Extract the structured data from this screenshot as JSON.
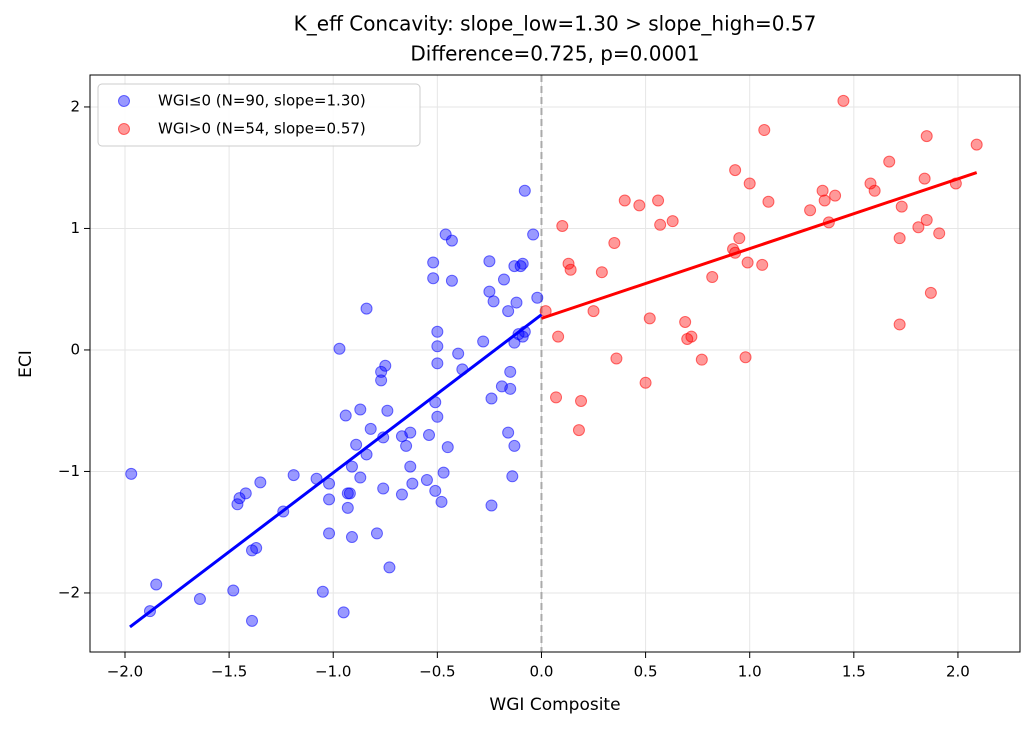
{
  "chart_data": {
    "type": "scatter",
    "title": "K_eff Concavity: slope_low=1.30 > slope_high=0.57",
    "subtitle": "Difference=0.725, p=0.0001",
    "xlabel": "WGI Composite",
    "ylabel": "ECI",
    "xlim": [
      -2.168,
      2.298
    ],
    "ylim": [
      -2.486,
      2.263
    ],
    "xticks": [
      {
        "value": -2,
        "label": "−2.0"
      },
      {
        "value": -1.5,
        "label": "−1.5"
      },
      {
        "value": -1,
        "label": "−1.0"
      },
      {
        "value": -0.5,
        "label": "−0.5"
      },
      {
        "value": 0,
        "label": "0.0"
      },
      0.5,
      {
        "value": 1,
        "label": "1.0"
      },
      1.5,
      {
        "value": 2,
        "label": "2.0"
      }
    ],
    "yticks": [
      {
        "value": -2,
        "label": "−2"
      },
      {
        "value": -1,
        "label": "−1"
      },
      0,
      1,
      2
    ],
    "grid": true,
    "legend": "upper left",
    "vline": {
      "x": 0,
      "color": "#aaaaaa"
    },
    "series": [
      {
        "name": "WGI≤0 (N=90, slope=1.30)",
        "color": "#0000ff",
        "x": [
          -1.97,
          -1.88,
          -1.85,
          -1.64,
          -1.48,
          -1.46,
          -1.45,
          -1.42,
          -1.35,
          -1.39,
          -1.39,
          -1.37,
          -1.24,
          -1.19,
          -1.08,
          -1.05,
          -1.02,
          -1.02,
          -1.02,
          -0.97,
          -0.95,
          -0.94,
          -0.93,
          -0.93,
          -0.92,
          -0.91,
          -0.91,
          -0.89,
          -0.87,
          -0.87,
          -0.84,
          -0.84,
          -0.82,
          -0.79,
          -0.77,
          -0.77,
          -0.76,
          -0.76,
          -0.75,
          -0.74,
          -0.73,
          -0.67,
          -0.67,
          -0.65,
          -0.63,
          -0.63,
          -0.62,
          -0.55,
          -0.54,
          -0.52,
          -0.52,
          -0.51,
          -0.51,
          -0.5,
          -0.5,
          -0.5,
          -0.5,
          -0.48,
          -0.47,
          -0.46,
          -0.45,
          -0.43,
          -0.43,
          -0.4,
          -0.38,
          -0.28,
          -0.25,
          -0.25,
          -0.24,
          -0.24,
          -0.23,
          -0.19,
          -0.18,
          -0.16,
          -0.16,
          -0.15,
          -0.15,
          -0.14,
          -0.13,
          -0.13,
          -0.13,
          -0.12,
          -0.11,
          -0.1,
          -0.09,
          -0.09,
          -0.08,
          -0.08,
          -0.04,
          -0.02
        ],
        "y": [
          -1.02,
          -2.15,
          -1.93,
          -2.05,
          -1.98,
          -1.27,
          -1.22,
          -1.18,
          -1.09,
          -2.23,
          -1.65,
          -1.63,
          -1.33,
          -1.03,
          -1.06,
          -1.99,
          -1.23,
          -1.1,
          -1.51,
          0.01,
          -2.16,
          -0.54,
          -1.3,
          -1.18,
          -1.18,
          -0.96,
          -1.54,
          -0.78,
          -0.49,
          -1.05,
          0.34,
          -0.86,
          -0.65,
          -1.51,
          -0.18,
          -0.25,
          -1.14,
          -0.72,
          -0.13,
          -0.5,
          -1.79,
          -0.71,
          -1.19,
          -0.79,
          -0.68,
          -0.96,
          -1.1,
          -1.07,
          -0.7,
          0.59,
          0.72,
          -0.43,
          -1.16,
          -0.55,
          0.15,
          0.03,
          -0.11,
          -1.25,
          -1.01,
          0.95,
          -0.8,
          0.57,
          0.9,
          -0.03,
          -0.16,
          0.07,
          0.73,
          0.48,
          -0.4,
          -1.28,
          0.4,
          -0.3,
          0.58,
          0.32,
          -0.68,
          -0.18,
          -0.32,
          -1.04,
          -0.79,
          0.06,
          0.69,
          0.39,
          0.13,
          0.69,
          0.11,
          0.71,
          1.31,
          0.15,
          0.95,
          0.43
        ]
      },
      {
        "name": "WGI>0 (N=54, slope=0.57)",
        "color": "#ff0000",
        "x": [
          0.02,
          0.07,
          0.08,
          0.1,
          0.13,
          0.14,
          0.18,
          0.19,
          0.25,
          0.29,
          0.35,
          0.36,
          0.4,
          0.47,
          0.5,
          0.52,
          0.56,
          0.57,
          0.63,
          0.69,
          0.7,
          0.72,
          0.77,
          0.82,
          0.92,
          0.93,
          0.93,
          0.95,
          0.98,
          0.99,
          1.0,
          1.06,
          1.07,
          1.09,
          1.29,
          1.35,
          1.36,
          1.38,
          1.41,
          1.45,
          1.58,
          1.6,
          1.67,
          1.72,
          1.72,
          1.73,
          1.81,
          1.84,
          1.85,
          1.85,
          1.87,
          1.91,
          1.99,
          2.09
        ],
        "y": [
          0.32,
          -0.39,
          0.11,
          1.02,
          0.71,
          0.66,
          -0.66,
          -0.42,
          0.32,
          0.64,
          0.88,
          -0.07,
          1.23,
          1.19,
          -0.27,
          0.26,
          1.23,
          1.03,
          1.06,
          0.23,
          0.09,
          0.11,
          -0.08,
          0.6,
          0.83,
          1.48,
          0.8,
          0.92,
          -0.06,
          0.72,
          1.37,
          0.7,
          1.81,
          1.22,
          1.15,
          1.31,
          1.23,
          1.05,
          1.27,
          2.05,
          1.37,
          1.31,
          1.55,
          0.92,
          0.21,
          1.18,
          1.01,
          1.41,
          1.76,
          1.07,
          0.47,
          0.96,
          1.37,
          1.69
        ]
      }
    ],
    "fits": [
      {
        "color": "#0000ff",
        "x": [
          -1.976,
          0
        ],
        "y": [
          -2.28,
          0.29
        ]
      },
      {
        "color": "#ff0000",
        "x": [
          0,
          2.09
        ],
        "y": [
          0.26,
          1.46
        ]
      }
    ]
  }
}
